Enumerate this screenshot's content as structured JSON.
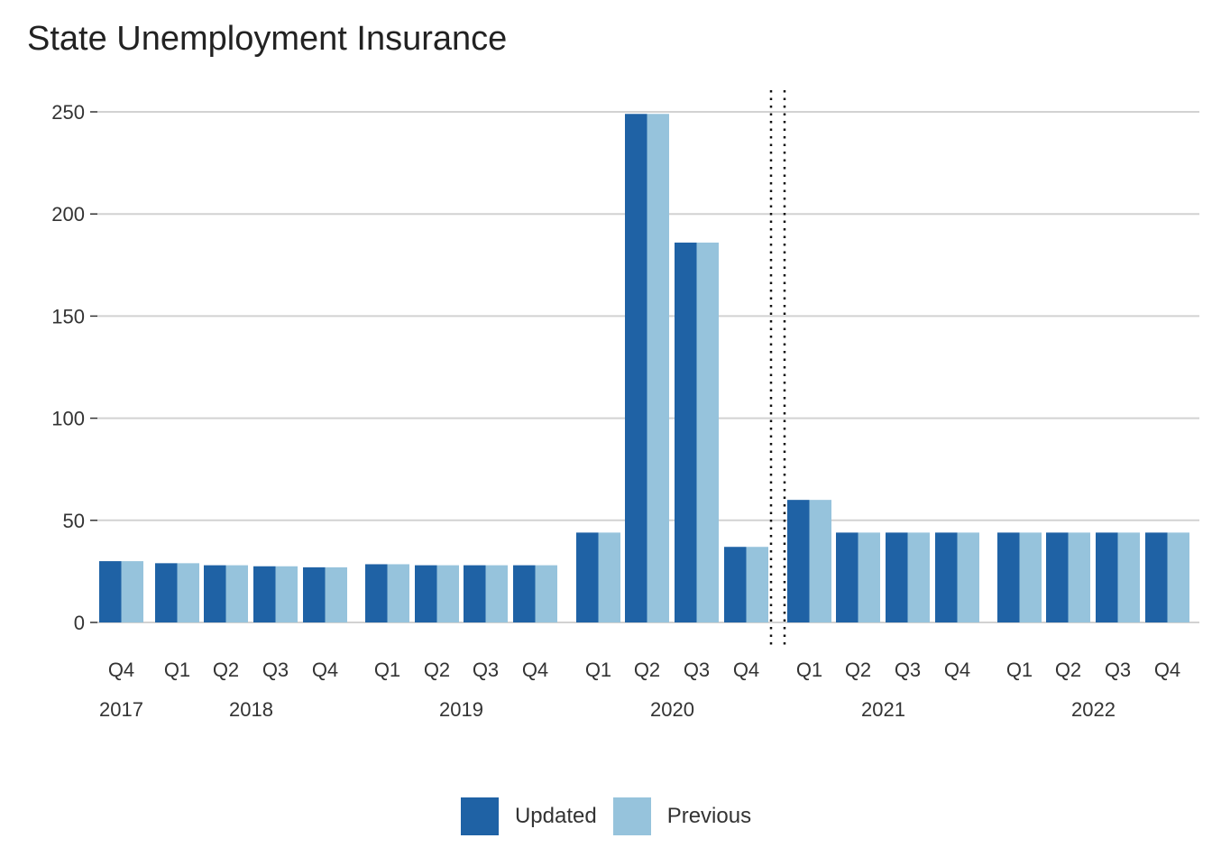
{
  "chart_data": {
    "type": "bar",
    "title": "State Unemployment Insurance",
    "xlabel": "",
    "ylabel": "",
    "ylim": [
      0,
      260
    ],
    "yticks": [
      0,
      50,
      100,
      150,
      200,
      250
    ],
    "grid": true,
    "legend_position": "bottom",
    "categories": [
      "Q4",
      "Q1",
      "Q2",
      "Q3",
      "Q4",
      "Q1",
      "Q2",
      "Q3",
      "Q4",
      "Q1",
      "Q2",
      "Q3",
      "Q4",
      "Q1",
      "Q2",
      "Q3",
      "Q4",
      "Q1",
      "Q2",
      "Q3",
      "Q4"
    ],
    "years": [
      {
        "label": "2017",
        "quarters": 1
      },
      {
        "label": "2018",
        "quarters": 4
      },
      {
        "label": "2019",
        "quarters": 4
      },
      {
        "label": "2020",
        "quarters": 4
      },
      {
        "label": "2021",
        "quarters": 4
      },
      {
        "label": "2022",
        "quarters": 4
      }
    ],
    "series": [
      {
        "name": "Updated",
        "color": "#1f62a5",
        "values": [
          30,
          29,
          28,
          27.5,
          27,
          28.5,
          28,
          28,
          28,
          44,
          249,
          186,
          37,
          60,
          44,
          44,
          44,
          44,
          44,
          44,
          44
        ]
      },
      {
        "name": "Previous",
        "color": "#96c3dc",
        "values": [
          30,
          29,
          28,
          27.5,
          27,
          28.5,
          28,
          28,
          28,
          44,
          249,
          186,
          37,
          60,
          44,
          44,
          44,
          44,
          44,
          44,
          44
        ]
      }
    ],
    "projection_marker": {
      "after_category_index": 12,
      "style": "dotted"
    }
  }
}
